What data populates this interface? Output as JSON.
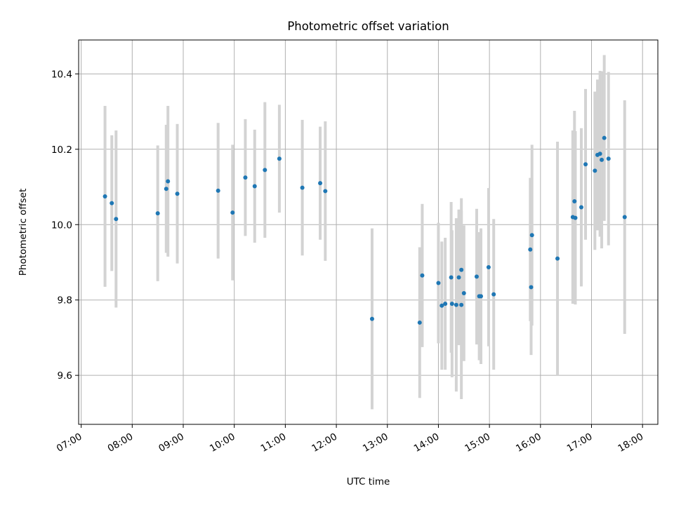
{
  "chart_data": {
    "type": "scatter",
    "title": "Photometric offset variation",
    "xlabel": "UTC time",
    "ylabel": "Photometric offset",
    "x_tick_labels": [
      "07:00",
      "08:00",
      "09:00",
      "10:00",
      "11:00",
      "12:00",
      "13:00",
      "14:00",
      "15:00",
      "16:00",
      "17:00",
      "18:00"
    ],
    "y_ticks": [
      9.6,
      9.8,
      10.0,
      10.2,
      10.4
    ],
    "y_tick_labels": [
      "9.6",
      "9.8",
      "10.0",
      "10.2",
      "10.4"
    ],
    "xlim": [
      "06:57",
      "18:18"
    ],
    "ylim": [
      9.47,
      10.49
    ],
    "grid": true,
    "colors": {
      "marker": "#1f77b4",
      "errorbar": "#d3d3d3",
      "grid": "#b0b0b0"
    },
    "series": [
      {
        "x": [
          "07:28",
          "07:36",
          "07:41",
          "08:30",
          "08:40",
          "08:42",
          "08:53",
          "09:41",
          "09:58",
          "10:13",
          "10:24",
          "10:36",
          "10:53",
          "11:20",
          "11:41",
          "11:47",
          "12:42",
          "13:38",
          "13:41",
          "14:00",
          "14:04",
          "14:08",
          "14:15",
          "14:16",
          "14:21",
          "14:24",
          "14:27",
          "14:27",
          "14:30",
          "14:45",
          "14:48",
          "14:50",
          "14:59",
          "15:05",
          "15:48",
          "15:49",
          "15:50",
          "16:20",
          "16:38",
          "16:40",
          "16:41",
          "16:48",
          "16:53",
          "17:04",
          "17:07",
          "17:10",
          "17:12",
          "17:15",
          "17:20",
          "17:39"
        ],
        "y": [
          10.075,
          10.057,
          10.015,
          10.03,
          10.095,
          10.115,
          10.082,
          10.09,
          10.032,
          10.125,
          10.102,
          10.145,
          10.175,
          10.098,
          10.11,
          10.089,
          9.75,
          9.74,
          9.865,
          9.845,
          9.785,
          9.79,
          9.86,
          9.79,
          9.787,
          9.86,
          9.88,
          9.787,
          9.818,
          9.862,
          9.81,
          9.81,
          9.887,
          9.815,
          9.934,
          9.834,
          9.972,
          9.91,
          10.02,
          10.062,
          10.018,
          10.046,
          10.16,
          10.143,
          10.185,
          10.188,
          10.172,
          10.23,
          10.175,
          10.02
        ],
        "yerr": [
          0.24,
          0.18,
          0.235,
          0.18,
          0.17,
          0.2,
          0.185,
          0.18,
          0.18,
          0.155,
          0.15,
          0.18,
          0.143,
          0.18,
          0.15,
          0.185,
          0.24,
          0.2,
          0.19,
          0.16,
          0.17,
          0.175,
          0.2,
          0.195,
          0.23,
          0.18,
          0.19,
          0.25,
          0.18,
          0.18,
          0.17,
          0.18,
          0.21,
          0.2,
          0.19,
          0.18,
          0.24,
          0.31,
          0.23,
          0.24,
          0.23,
          0.21,
          0.2,
          0.21,
          0.2,
          0.22,
          0.235,
          0.22,
          0.23,
          0.31
        ]
      }
    ]
  }
}
